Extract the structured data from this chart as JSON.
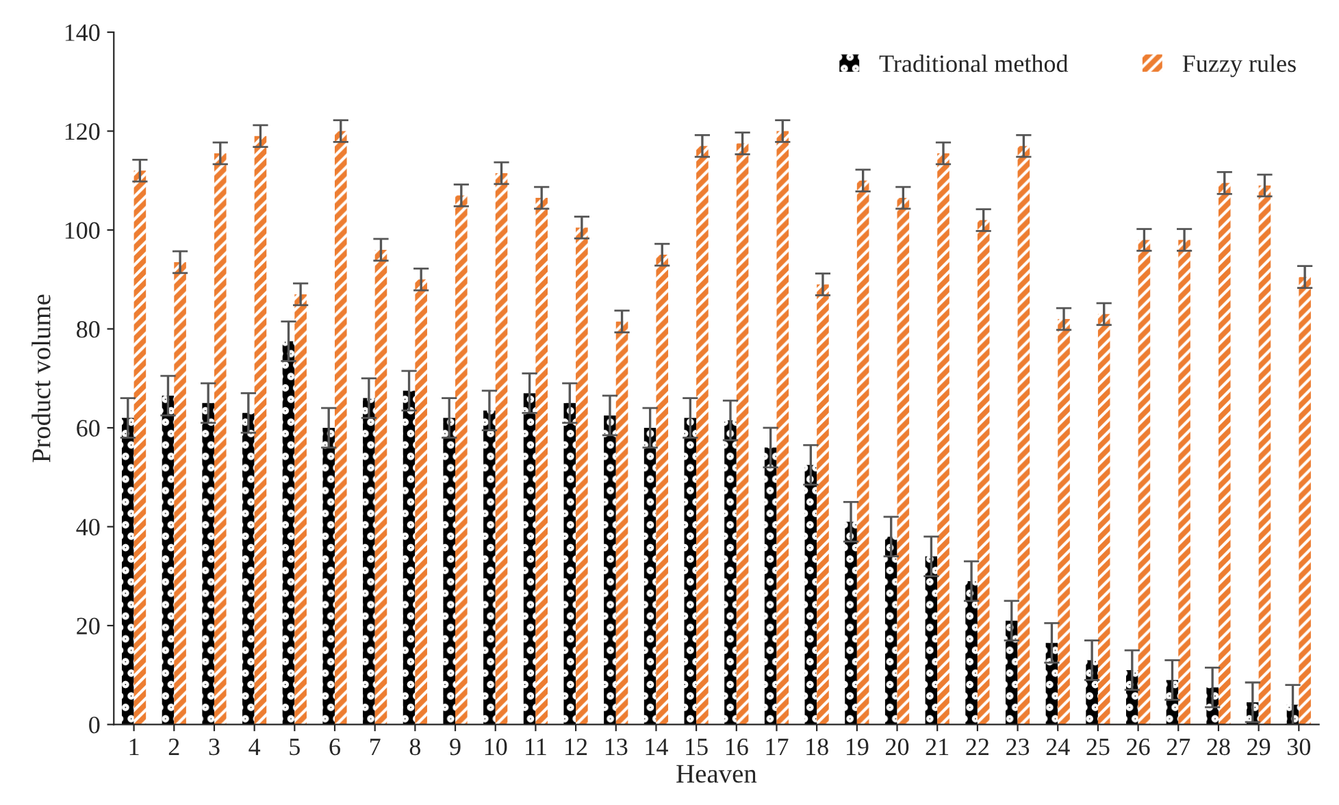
{
  "chart_data": {
    "type": "bar",
    "xlabel": "Heaven",
    "ylabel": "Product volume",
    "categories": [
      "1",
      "2",
      "3",
      "4",
      "5",
      "6",
      "7",
      "8",
      "9",
      "10",
      "11",
      "12",
      "13",
      "14",
      "15",
      "16",
      "17",
      "18",
      "19",
      "20",
      "21",
      "22",
      "23",
      "24",
      "25",
      "26",
      "27",
      "28",
      "29",
      "30"
    ],
    "series": [
      {
        "name": "Traditional method",
        "color": "#000000",
        "values": [
          62,
          66.5,
          65,
          63,
          77.5,
          60,
          66,
          67.5,
          62,
          63.5,
          67,
          65,
          62.5,
          60,
          62,
          61.5,
          56,
          52.5,
          41,
          38,
          34,
          29,
          21,
          16.5,
          13,
          11,
          9,
          7.5,
          4.5,
          4
        ],
        "errors": [
          4,
          4,
          4,
          4,
          4,
          4,
          4,
          4,
          4,
          4,
          4,
          4,
          4,
          4,
          4,
          4,
          4,
          4,
          4,
          4,
          4,
          4,
          4,
          4,
          4,
          4,
          4,
          4,
          4,
          4
        ]
      },
      {
        "name": "Fuzzy rules",
        "color": "#ed7d31",
        "values": [
          112,
          93.5,
          115.5,
          119,
          87,
          120,
          96,
          90,
          107,
          111.5,
          106.5,
          100.5,
          81.5,
          95,
          117,
          117.5,
          120,
          89,
          110,
          106.5,
          115.5,
          102,
          117,
          82,
          83,
          98,
          98,
          109.5,
          109,
          90.5
        ],
        "errors": [
          2.2,
          2.2,
          2.2,
          2.2,
          2.2,
          2.2,
          2.2,
          2.2,
          2.2,
          2.2,
          2.2,
          2.2,
          2.2,
          2.2,
          2.2,
          2.2,
          2.2,
          2.2,
          2.2,
          2.2,
          2.2,
          2.2,
          2.2,
          2.2,
          2.2,
          2.2,
          2.2,
          2.2,
          2.2,
          2.2
        ]
      }
    ],
    "ylim": [
      0,
      140
    ],
    "yticks": [
      0,
      20,
      40,
      60,
      80,
      100,
      120,
      140
    ],
    "grid": false,
    "legend": "top right"
  }
}
